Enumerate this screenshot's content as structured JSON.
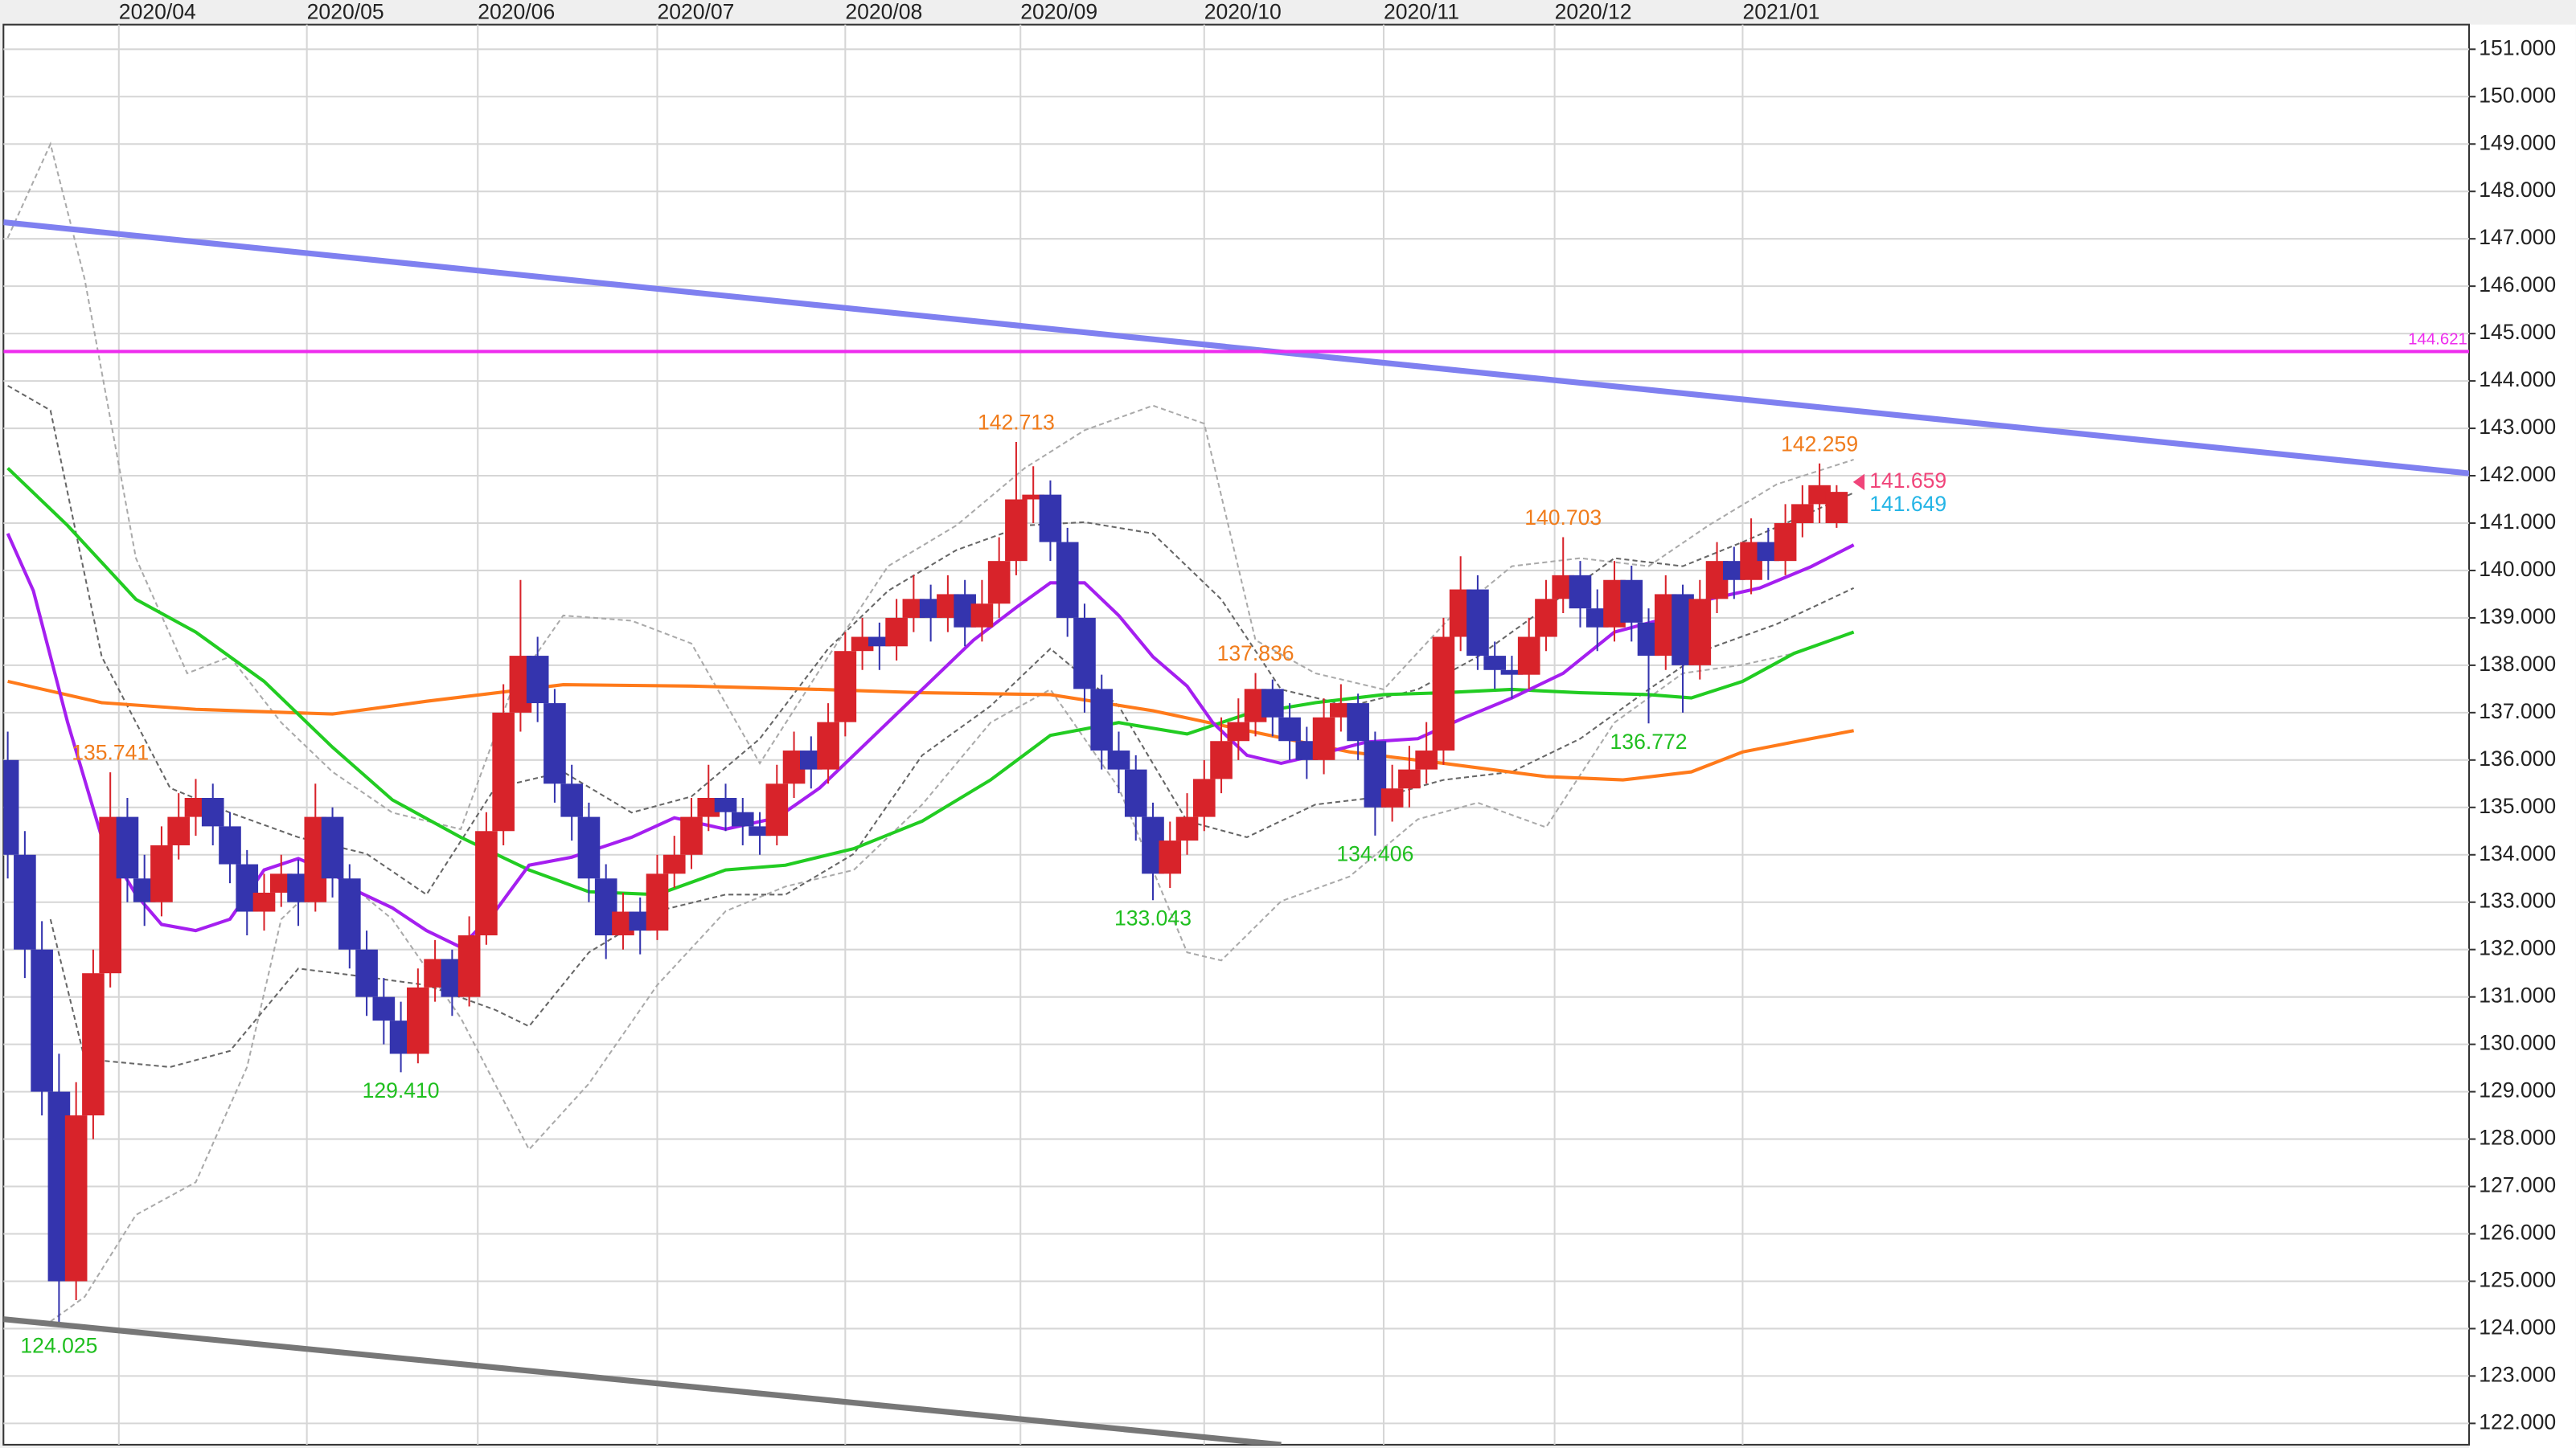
{
  "chart_data": {
    "type": "candlestick",
    "grid": true,
    "up_color": "#d8232a",
    "down_color": "#3434ae",
    "xlim": [
      -0.5,
      288
    ],
    "xticks": [
      {
        "value": 13,
        "label": "2020/04"
      },
      {
        "value": 35,
        "label": "2020/05"
      },
      {
        "value": 55,
        "label": "2020/06"
      },
      {
        "value": 76,
        "label": "2020/07"
      },
      {
        "value": 98,
        "label": "2020/08"
      },
      {
        "value": 118.5,
        "label": "2020/09"
      },
      {
        "value": 140,
        "label": "2020/10"
      },
      {
        "value": 161,
        "label": "2020/11"
      },
      {
        "value": 181,
        "label": "2020/12"
      },
      {
        "value": 203,
        "label": "2021/01"
      }
    ],
    "ylim": [
      121.55,
      151.52
    ],
    "yticks": [
      {
        "value": 122,
        "label": "122.000"
      },
      {
        "value": 123,
        "label": "123.000"
      },
      {
        "value": 124,
        "label": "124.000"
      },
      {
        "value": 125,
        "label": "125.000"
      },
      {
        "value": 126,
        "label": "126.000"
      },
      {
        "value": 127,
        "label": "127.000"
      },
      {
        "value": 128,
        "label": "128.000"
      },
      {
        "value": 129,
        "label": "129.000"
      },
      {
        "value": 130,
        "label": "130.000"
      },
      {
        "value": 131,
        "label": "131.000"
      },
      {
        "value": 132,
        "label": "132.000"
      },
      {
        "value": 133,
        "label": "133.000"
      },
      {
        "value": 134,
        "label": "134.000"
      },
      {
        "value": 135,
        "label": "135.000"
      },
      {
        "value": 136,
        "label": "136.000"
      },
      {
        "value": 137,
        "label": "137.000"
      },
      {
        "value": 138,
        "label": "138.000"
      },
      {
        "value": 139,
        "label": "139.000"
      },
      {
        "value": 140,
        "label": "140.000"
      },
      {
        "value": 141,
        "label": "141.000"
      },
      {
        "value": 142,
        "label": "142.000"
      },
      {
        "value": 143,
        "label": "143.000"
      },
      {
        "value": 144,
        "label": "144.000"
      },
      {
        "value": 145,
        "label": "145.000"
      },
      {
        "value": 146,
        "label": "146.000"
      },
      {
        "value": 147,
        "label": "147.000"
      },
      {
        "value": 148,
        "label": "148.000"
      },
      {
        "value": 149,
        "label": "149.000"
      },
      {
        "value": 150,
        "label": "150.000"
      },
      {
        "value": 151,
        "label": "151.000"
      }
    ],
    "x": [
      0,
      2,
      4,
      6,
      8,
      10,
      12,
      14,
      16,
      18,
      20,
      22,
      24,
      26,
      28,
      30,
      32,
      34,
      36,
      38,
      40,
      42,
      44,
      46,
      48,
      50,
      52,
      54,
      56,
      58,
      60,
      62,
      64,
      66,
      68,
      70,
      72,
      74,
      76,
      78,
      80,
      82,
      84,
      86,
      88,
      90,
      92,
      94,
      96,
      98,
      100,
      102,
      104,
      106,
      108,
      110,
      112,
      114,
      116,
      118,
      120,
      122,
      124,
      126,
      128,
      130,
      132,
      134,
      136,
      138,
      140,
      142,
      144,
      146,
      148,
      150,
      152,
      154,
      156,
      158,
      160,
      162,
      164,
      166,
      168,
      170,
      172,
      174,
      176,
      178,
      180,
      182,
      184,
      186,
      188,
      190,
      192,
      194,
      196,
      198,
      200,
      202,
      204,
      206,
      208,
      210,
      212,
      214
    ],
    "open": [
      136.0,
      134.0,
      132.0,
      129.0,
      125.0,
      128.5,
      131.5,
      134.8,
      133.5,
      133.0,
      134.2,
      134.8,
      135.2,
      134.6,
      133.8,
      132.8,
      133.2,
      133.6,
      133.0,
      134.8,
      133.5,
      132.0,
      131.0,
      130.5,
      129.8,
      131.2,
      131.8,
      131.0,
      132.3,
      134.5,
      137.0,
      138.2,
      137.2,
      135.5,
      134.8,
      133.5,
      132.3,
      132.8,
      132.4,
      133.6,
      134.0,
      134.8,
      135.2,
      134.9,
      134.6,
      134.4,
      135.5,
      136.2,
      135.8,
      136.8,
      138.3,
      138.6,
      138.4,
      139.0,
      139.4,
      139.0,
      139.5,
      138.8,
      139.3,
      140.2,
      141.5,
      141.6,
      140.6,
      139.0,
      137.5,
      136.2,
      135.8,
      134.8,
      133.6,
      134.3,
      134.8,
      135.6,
      136.4,
      136.8,
      137.5,
      136.9,
      136.4,
      136.0,
      136.9,
      137.2,
      136.4,
      135.0,
      135.4,
      135.8,
      136.2,
      138.6,
      139.6,
      138.2,
      137.9,
      137.8,
      138.6,
      139.4,
      139.9,
      139.2,
      138.8,
      139.8,
      138.9,
      138.2,
      139.5,
      138.0,
      139.4,
      140.2,
      139.8,
      140.6,
      140.2,
      141.0,
      141.4,
      141.0
    ],
    "high": [
      136.6,
      134.5,
      132.6,
      129.8,
      129.2,
      132.0,
      135.741,
      135.2,
      134.0,
      134.6,
      135.3,
      135.6,
      135.5,
      134.9,
      134.1,
      133.6,
      134.0,
      133.9,
      135.5,
      135.0,
      133.8,
      132.4,
      131.4,
      130.9,
      131.6,
      132.2,
      132.0,
      132.7,
      134.9,
      137.6,
      139.8,
      138.6,
      137.5,
      135.9,
      135.1,
      133.8,
      133.2,
      133.1,
      134.0,
      134.4,
      135.2,
      135.9,
      135.5,
      135.2,
      134.9,
      135.9,
      136.6,
      136.5,
      137.2,
      138.7,
      139.0,
      138.9,
      139.4,
      139.9,
      139.7,
      139.9,
      139.8,
      139.8,
      140.7,
      142.713,
      142.2,
      141.9,
      140.9,
      139.3,
      137.8,
      136.6,
      136.1,
      135.1,
      134.7,
      135.3,
      136.0,
      136.9,
      137.3,
      137.836,
      137.7,
      137.2,
      136.7,
      137.3,
      137.6,
      137.4,
      136.6,
      135.9,
      136.3,
      136.8,
      139.0,
      140.3,
      139.9,
      138.5,
      138.2,
      139.0,
      139.8,
      140.703,
      140.2,
      139.6,
      140.2,
      140.1,
      139.2,
      139.9,
      139.7,
      139.8,
      140.6,
      140.5,
      141.1,
      140.9,
      141.4,
      141.8,
      142.259,
      141.8
    ],
    "low": [
      133.5,
      131.4,
      128.5,
      124.025,
      124.6,
      128.0,
      131.2,
      133.0,
      132.5,
      132.7,
      133.9,
      134.4,
      134.2,
      133.4,
      132.3,
      132.4,
      132.9,
      132.5,
      132.8,
      133.1,
      131.6,
      130.6,
      130.0,
      129.41,
      129.6,
      130.9,
      130.6,
      130.8,
      132.1,
      134.2,
      136.6,
      136.8,
      135.1,
      134.3,
      133.0,
      131.8,
      132.0,
      131.9,
      132.2,
      133.3,
      133.7,
      134.5,
      134.5,
      134.2,
      134.0,
      134.2,
      135.2,
      135.4,
      135.5,
      136.5,
      137.9,
      137.9,
      138.1,
      138.7,
      138.5,
      138.7,
      138.4,
      138.5,
      139.0,
      139.9,
      141.0,
      140.2,
      138.6,
      137.0,
      135.8,
      135.3,
      134.3,
      133.043,
      133.3,
      134.0,
      134.5,
      135.3,
      136.0,
      136.5,
      136.5,
      136.0,
      135.6,
      135.7,
      136.6,
      136.0,
      134.406,
      134.7,
      135.0,
      135.5,
      135.9,
      138.3,
      137.9,
      137.5,
      137.3,
      137.5,
      138.3,
      139.1,
      138.8,
      138.3,
      138.5,
      138.5,
      136.772,
      137.9,
      137.0,
      137.7,
      139.1,
      139.4,
      139.5,
      139.8,
      139.9,
      140.7,
      141.0,
      140.9
    ],
    "close": [
      134.0,
      132.0,
      129.0,
      125.0,
      128.5,
      131.5,
      134.8,
      133.5,
      133.0,
      134.2,
      134.8,
      135.2,
      134.6,
      133.8,
      132.8,
      133.2,
      133.6,
      133.0,
      134.8,
      133.5,
      132.0,
      131.0,
      130.5,
      129.8,
      131.2,
      131.8,
      131.0,
      132.3,
      134.5,
      137.0,
      138.2,
      137.2,
      135.5,
      134.8,
      133.5,
      132.3,
      132.8,
      132.4,
      133.6,
      134.0,
      134.8,
      135.2,
      134.9,
      134.6,
      134.4,
      135.5,
      136.2,
      135.8,
      136.8,
      138.3,
      138.6,
      138.4,
      139.0,
      139.4,
      139.0,
      139.5,
      138.8,
      139.3,
      140.2,
      141.5,
      141.6,
      140.6,
      139.0,
      137.5,
      136.2,
      135.8,
      134.8,
      133.6,
      134.3,
      134.8,
      135.6,
      136.4,
      136.8,
      137.5,
      136.9,
      136.4,
      136.0,
      136.9,
      137.2,
      136.4,
      135.0,
      135.4,
      135.8,
      136.2,
      138.6,
      139.6,
      138.2,
      137.9,
      137.8,
      138.6,
      139.4,
      139.9,
      139.2,
      138.8,
      139.8,
      138.9,
      138.2,
      139.5,
      138.0,
      139.4,
      140.2,
      139.8,
      140.6,
      140.2,
      141.0,
      141.4,
      141.8,
      141.659
    ],
    "bands": [
      {
        "color": "#aaaaaa",
        "x": [
          0,
          5,
          9,
          15,
          21,
          26,
          32,
          38,
          45,
          53,
          59,
          65,
          73,
          80,
          88,
          96,
          103,
          111,
          119,
          126,
          134,
          140,
          146,
          153,
          161,
          169,
          176,
          184,
          192,
          199,
          207,
          216
        ],
        "values": [
          147.02,
          149,
          146.15,
          140.26,
          137.83,
          138.18,
          136.79,
          135.75,
          134.89,
          134.54,
          137.49,
          139.05,
          138.94,
          138.46,
          135.93,
          138.18,
          140.09,
          140.95,
          142.16,
          142.96,
          143.48,
          143.1,
          138.53,
          137.83,
          137.49,
          139.05,
          140.09,
          140.26,
          140.09,
          140.95,
          141.82,
          142.34
        ]
      },
      {
        "color": "#aaaaaa",
        "x": [
          5,
          9,
          15,
          22,
          28,
          32,
          38,
          45,
          53,
          61,
          68,
          76,
          84,
          91,
          99,
          107,
          115,
          122,
          130,
          138,
          142,
          149,
          157,
          165,
          172,
          180,
          188,
          196,
          203,
          209
        ],
        "values": [
          124.15,
          124.67,
          126.4,
          127.09,
          129.52,
          132.64,
          133.68,
          132.64,
          130.56,
          127.78,
          129.17,
          131.25,
          132.81,
          133.33,
          133.68,
          135.06,
          136.79,
          137.49,
          135.41,
          131.94,
          131.77,
          133.02,
          133.54,
          134.75,
          135.1,
          134.58,
          136.79,
          137.83,
          138.01,
          138.25
        ]
      },
      {
        "color": "#666666",
        "x": [
          0,
          5,
          11,
          19,
          26,
          34,
          42,
          49,
          57,
          65,
          73,
          80,
          88,
          96,
          103,
          111,
          119,
          126,
          134,
          142,
          149,
          157,
          165,
          172,
          180,
          188,
          196,
          203,
          211,
          216
        ],
        "values": [
          143.9,
          143.38,
          138.18,
          135.41,
          134.89,
          134.37,
          134.02,
          133.16,
          135.41,
          135.75,
          134.89,
          135.23,
          136.45,
          138.35,
          139.57,
          140.43,
          140.95,
          141.02,
          140.78,
          139.39,
          137.49,
          137.14,
          137.49,
          138.18,
          139.22,
          140.26,
          140.09,
          140.6,
          141.23,
          141.64
        ]
      },
      {
        "color": "#666666",
        "x": [
          5,
          9,
          19,
          26,
          34,
          42,
          49,
          57,
          61,
          68,
          76,
          84,
          91,
          99,
          107,
          115,
          122,
          130,
          138,
          145,
          153,
          161,
          168,
          176,
          184,
          192,
          199,
          207,
          216
        ],
        "values": [
          132.64,
          129.69,
          129.52,
          129.86,
          131.6,
          131.42,
          131.25,
          130.73,
          130.38,
          131.94,
          132.81,
          133.16,
          133.16,
          134.02,
          136.1,
          137.14,
          138.35,
          137.14,
          134.71,
          134.37,
          135.06,
          135.23,
          135.58,
          135.75,
          136.45,
          137.49,
          138.35,
          138.87,
          139.63
        ]
      }
    ],
    "moving_averages": [
      {
        "color": "#ff7a1a",
        "x": [
          0,
          11,
          22,
          38,
          49,
          65,
          80,
          95,
          107,
          122,
          134,
          145,
          157,
          168,
          180,
          189,
          197,
          203,
          211,
          216
        ],
        "values": [
          137.66,
          137.21,
          137.07,
          136.97,
          137.24,
          137.59,
          137.56,
          137.49,
          137.42,
          137.38,
          137.04,
          136.62,
          136.17,
          135.93,
          135.65,
          135.58,
          135.75,
          136.17,
          136.45,
          136.62
        ]
      },
      {
        "color": "#22cc22",
        "x": [
          0,
          7,
          15,
          22,
          30,
          38,
          45,
          53,
          61,
          68,
          76,
          84,
          91,
          99,
          107,
          115,
          122,
          130,
          138,
          145,
          153,
          161,
          168,
          176,
          184,
          192,
          197,
          203,
          209,
          216
        ],
        "values": [
          142.16,
          140.95,
          139.39,
          138.7,
          137.66,
          136.27,
          135.16,
          134.37,
          133.68,
          133.22,
          133.16,
          133.68,
          133.78,
          134.13,
          134.71,
          135.58,
          136.52,
          136.79,
          136.55,
          136.97,
          137.21,
          137.38,
          137.42,
          137.49,
          137.42,
          137.38,
          137.31,
          137.66,
          138.25,
          138.7
        ]
      },
      {
        "color": "#a51ff0",
        "x": [
          0,
          3,
          7,
          11,
          15,
          18,
          22,
          26,
          30,
          34,
          38,
          41,
          45,
          49,
          53,
          57,
          61,
          66,
          73,
          78,
          84,
          90,
          95,
          101,
          107,
          113,
          118,
          122,
          126,
          130,
          134,
          138,
          141,
          145,
          149,
          153,
          159,
          165,
          170,
          176,
          182,
          188,
          193,
          199,
          205,
          211,
          216
        ],
        "values": [
          140.78,
          139.57,
          136.8,
          134.37,
          133.16,
          132.53,
          132.4,
          132.64,
          133.68,
          133.92,
          133.61,
          133.22,
          132.88,
          132.4,
          132.05,
          132.8,
          133.78,
          133.95,
          134.37,
          134.78,
          134.54,
          134.78,
          135.41,
          136.45,
          137.49,
          138.53,
          139.22,
          139.74,
          139.74,
          139.05,
          138.18,
          137.56,
          136.79,
          136.1,
          135.93,
          136.1,
          136.38,
          136.45,
          136.86,
          137.31,
          137.83,
          138.7,
          138.94,
          139.39,
          139.63,
          140.08,
          140.54
        ]
      }
    ],
    "trendlines": [
      {
        "color": "#7f80f0",
        "x": [
          -0.5,
          288
        ],
        "values": [
          147.35,
          142.05
        ]
      },
      {
        "color": "#777777",
        "x": [
          -0.5,
          149
        ],
        "values": [
          124.2,
          121.55
        ]
      }
    ],
    "hlines": [
      {
        "value": 144.621,
        "label": "144.621",
        "color": "#ee2cee"
      }
    ],
    "annotations": [
      {
        "label": "135.741",
        "value": 135.741,
        "x": 12,
        "color": "#f07c1c"
      },
      {
        "label": "124.025",
        "value": 124.025,
        "x": 6,
        "color": "#1fbf1f"
      },
      {
        "label": "129.410",
        "value": 129.41,
        "x": 46,
        "color": "#1fbf1f"
      },
      {
        "label": "142.713",
        "value": 142.713,
        "x": 118,
        "color": "#f07c1c"
      },
      {
        "label": "133.043",
        "value": 133.043,
        "x": 134,
        "color": "#1fbf1f"
      },
      {
        "label": "137.836",
        "value": 137.836,
        "x": 146,
        "color": "#f07c1c"
      },
      {
        "label": "134.406",
        "value": 134.406,
        "x": 160,
        "color": "#1fbf1f"
      },
      {
        "label": "140.703",
        "value": 140.703,
        "x": 182,
        "color": "#f07c1c"
      },
      {
        "label": "136.772",
        "value": 136.772,
        "x": 192,
        "color": "#1fbf1f"
      },
      {
        "label": "142.259",
        "value": 142.259,
        "x": 212,
        "color": "#f07c1c"
      }
    ],
    "price_labels": [
      {
        "label": "141.659",
        "value": 141.659,
        "color": "#f0457a"
      },
      {
        "label": "141.649",
        "value": 141.649,
        "color": "#25b5e6"
      }
    ]
  }
}
